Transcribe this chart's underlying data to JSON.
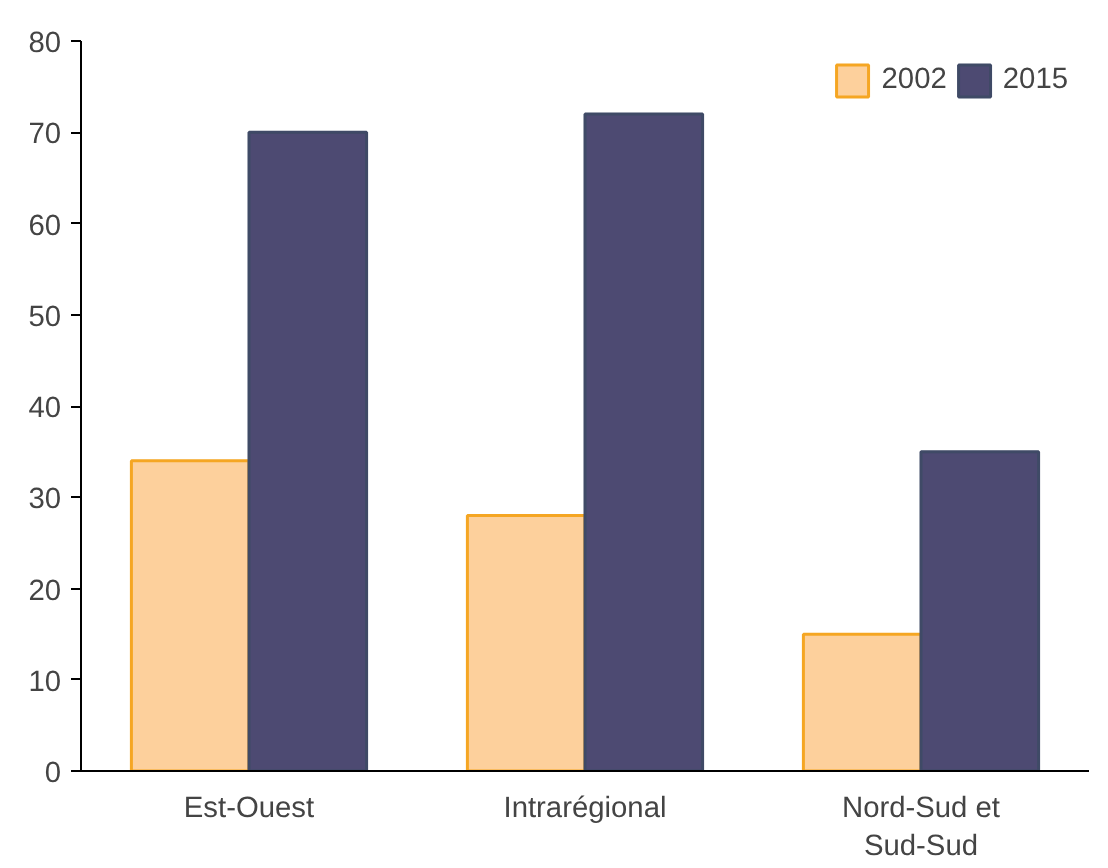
{
  "chart_data": {
    "type": "bar",
    "categories": [
      "Est-Ouest",
      "Intrarégional",
      "Nord-Sud et\nSud-Sud"
    ],
    "series": [
      {
        "name": "2002",
        "color": "#fdd09c",
        "values": [
          34,
          28,
          15
        ]
      },
      {
        "name": "2015",
        "color": "#4d4a72",
        "values": [
          70,
          72,
          35
        ]
      }
    ],
    "ylim": [
      0,
      80
    ],
    "yticks": [
      0,
      10,
      20,
      30,
      40,
      50,
      60,
      70,
      80
    ],
    "grid": false,
    "legend": "top right"
  }
}
